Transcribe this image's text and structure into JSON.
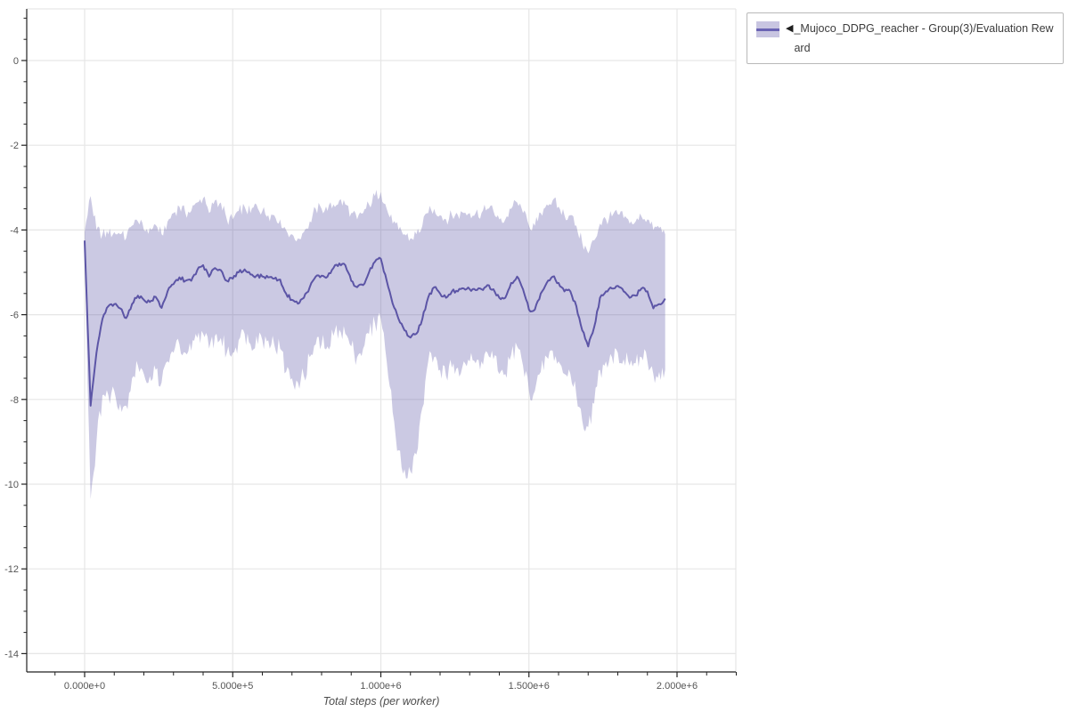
{
  "legend": {
    "arrow": "◀",
    "label": "_Mujoco_DDPG_reacher - Group(3)/Evaluation Reward"
  },
  "axes": {
    "x_label": "Total steps (per worker)"
  },
  "chart_data": {
    "type": "line",
    "title": "",
    "xlabel": "Total steps (per worker)",
    "ylabel": "",
    "grid": true,
    "legend_position": "top-right-outside",
    "xlim": [
      -195500,
      2198500
    ],
    "ylim": [
      -14.43,
      1.22
    ],
    "x_tick_labels": [
      {
        "value": 0,
        "label": "0.000e+0"
      },
      {
        "value": 500000,
        "label": "5.000e+5"
      },
      {
        "value": 1000000,
        "label": "1.000e+6"
      },
      {
        "value": 1500000,
        "label": "1.500e+6"
      },
      {
        "value": 2000000,
        "label": "2.000e+6"
      }
    ],
    "y_tick_labels": [
      {
        "value": 0,
        "label": "0"
      },
      {
        "value": -2,
        "label": "-2"
      },
      {
        "value": -4,
        "label": "-4"
      },
      {
        "value": -6,
        "label": "-6"
      },
      {
        "value": -8,
        "label": "-8"
      },
      {
        "value": -10,
        "label": "-10"
      },
      {
        "value": -12,
        "label": "-12"
      },
      {
        "value": -14,
        "label": "-14"
      }
    ],
    "x_minor_tick_step": 100000,
    "y_minor_tick_step": 0.5,
    "colors": {
      "line": "#5c55a6",
      "band": "rgba(98,90,170,0.33)",
      "grid": "#e6e6e6",
      "axis": "#222222",
      "tick_label": "#555555",
      "axis_label": "#4d4d4d"
    },
    "x": [
      0,
      20000,
      40000,
      60000,
      80000,
      100000,
      120000,
      140000,
      160000,
      180000,
      200000,
      220000,
      240000,
      260000,
      280000,
      300000,
      320000,
      340000,
      360000,
      380000,
      400000,
      420000,
      440000,
      460000,
      480000,
      500000,
      520000,
      540000,
      560000,
      580000,
      600000,
      620000,
      640000,
      660000,
      680000,
      700000,
      720000,
      740000,
      760000,
      780000,
      800000,
      820000,
      840000,
      860000,
      880000,
      900000,
      920000,
      940000,
      960000,
      980000,
      1000000,
      1020000,
      1040000,
      1060000,
      1080000,
      1100000,
      1120000,
      1140000,
      1160000,
      1180000,
      1200000,
      1220000,
      1240000,
      1260000,
      1280000,
      1300000,
      1320000,
      1340000,
      1360000,
      1380000,
      1400000,
      1420000,
      1440000,
      1460000,
      1480000,
      1500000,
      1520000,
      1540000,
      1560000,
      1580000,
      1600000,
      1620000,
      1640000,
      1660000,
      1680000,
      1700000,
      1720000,
      1740000,
      1760000,
      1780000,
      1800000,
      1820000,
      1840000,
      1860000,
      1880000,
      1900000,
      1920000,
      1940000,
      1960000
    ],
    "series": [
      {
        "name": "_Mujoco_DDPG_reacher - Group(3)/Evaluation Reward",
        "mean": [
          -4.25,
          -8.15,
          -6.9,
          -6.1,
          -5.8,
          -5.75,
          -5.85,
          -6.08,
          -5.75,
          -5.55,
          -5.65,
          -5.7,
          -5.58,
          -5.84,
          -5.45,
          -5.28,
          -5.12,
          -5.2,
          -5.2,
          -4.95,
          -4.83,
          -5.1,
          -4.9,
          -4.95,
          -5.2,
          -5.15,
          -5.0,
          -4.93,
          -5.05,
          -5.08,
          -5.1,
          -5.12,
          -5.15,
          -5.17,
          -5.5,
          -5.65,
          -5.74,
          -5.6,
          -5.35,
          -5.1,
          -5.08,
          -5.1,
          -4.9,
          -4.79,
          -4.83,
          -5.2,
          -5.35,
          -5.3,
          -5.0,
          -4.75,
          -4.68,
          -5.2,
          -5.74,
          -6.1,
          -6.37,
          -6.54,
          -6.45,
          -6.1,
          -5.59,
          -5.35,
          -5.5,
          -5.6,
          -5.45,
          -5.45,
          -5.38,
          -5.4,
          -5.42,
          -5.4,
          -5.3,
          -5.4,
          -5.6,
          -5.6,
          -5.25,
          -5.1,
          -5.4,
          -5.88,
          -5.88,
          -5.5,
          -5.25,
          -5.1,
          -5.25,
          -5.45,
          -5.45,
          -5.8,
          -6.37,
          -6.75,
          -6.3,
          -5.6,
          -5.45,
          -5.38,
          -5.32,
          -5.45,
          -5.6,
          -5.55,
          -5.38,
          -5.45,
          -5.85,
          -5.75,
          -5.62
        ],
        "band_upper": [
          -4.05,
          -3.2,
          -4.0,
          -4.1,
          -4.1,
          -4.05,
          -4.1,
          -4.2,
          -3.9,
          -3.8,
          -4.0,
          -3.95,
          -3.88,
          -4.1,
          -3.8,
          -3.6,
          -3.45,
          -3.6,
          -3.55,
          -3.35,
          -3.25,
          -3.6,
          -3.3,
          -3.35,
          -3.75,
          -3.75,
          -3.55,
          -3.45,
          -3.6,
          -3.4,
          -3.55,
          -3.65,
          -3.65,
          -3.75,
          -4.0,
          -4.1,
          -4.2,
          -4.05,
          -3.8,
          -3.5,
          -3.5,
          -3.55,
          -3.4,
          -3.3,
          -3.4,
          -3.6,
          -3.75,
          -3.6,
          -3.4,
          -3.2,
          -3.1,
          -3.5,
          -3.85,
          -4.0,
          -4.1,
          -4.2,
          -4.1,
          -3.9,
          -3.6,
          -3.5,
          -3.65,
          -3.75,
          -3.65,
          -3.65,
          -3.6,
          -3.6,
          -3.6,
          -3.6,
          -3.5,
          -3.55,
          -3.75,
          -3.75,
          -3.5,
          -3.35,
          -3.6,
          -3.9,
          -3.9,
          -3.6,
          -3.4,
          -3.3,
          -3.45,
          -3.65,
          -3.65,
          -3.9,
          -4.3,
          -4.55,
          -4.25,
          -3.85,
          -3.75,
          -3.68,
          -3.63,
          -3.72,
          -3.85,
          -3.8,
          -3.68,
          -3.75,
          -4.0,
          -3.95,
          -4.1
        ],
        "band_lower": [
          -4.5,
          -10.35,
          -9.0,
          -7.9,
          -7.9,
          -7.8,
          -8.1,
          -8.15,
          -7.5,
          -7.2,
          -7.4,
          -7.45,
          -7.3,
          -7.6,
          -7.1,
          -6.9,
          -6.7,
          -6.9,
          -6.85,
          -6.55,
          -6.45,
          -6.8,
          -6.5,
          -6.55,
          -6.9,
          -6.9,
          -6.6,
          -6.45,
          -6.7,
          -6.5,
          -6.6,
          -6.6,
          -6.7,
          -6.8,
          -7.35,
          -7.5,
          -7.6,
          -7.45,
          -7.0,
          -6.7,
          -6.7,
          -6.75,
          -6.5,
          -6.35,
          -6.45,
          -6.75,
          -7.0,
          -6.8,
          -6.45,
          -6.2,
          -6.1,
          -7.1,
          -8.3,
          -9.2,
          -9.65,
          -9.7,
          -9.3,
          -8.2,
          -7.1,
          -7.0,
          -7.3,
          -7.45,
          -7.25,
          -7.25,
          -7.1,
          -7.1,
          -7.15,
          -7.1,
          -6.9,
          -7.05,
          -7.4,
          -7.4,
          -6.95,
          -6.75,
          -7.2,
          -7.8,
          -7.8,
          -7.35,
          -7.0,
          -6.85,
          -7.1,
          -7.4,
          -7.4,
          -7.9,
          -8.5,
          -8.65,
          -8.1,
          -7.3,
          -7.1,
          -7.0,
          -6.9,
          -7.05,
          -7.2,
          -7.15,
          -7.0,
          -7.1,
          -7.4,
          -7.35,
          -7.3
        ]
      }
    ]
  }
}
